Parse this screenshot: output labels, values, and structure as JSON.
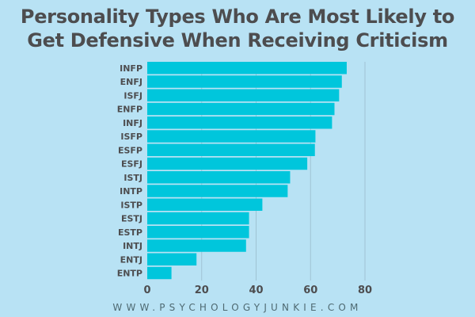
{
  "chart_data": {
    "type": "bar",
    "orientation": "horizontal",
    "title": "Personality Types Who Are Most Likely to Get Defensive When Receiving Criticism",
    "categories": [
      "INFP",
      "ENFJ",
      "ISFJ",
      "ENFP",
      "INFJ",
      "ISFP",
      "ESFP",
      "ESFJ",
      "ISTJ",
      "INTP",
      "ISTP",
      "ESTJ",
      "ESTP",
      "INTJ",
      "ENTJ",
      "ENTP"
    ],
    "values": [
      73.3,
      71.5,
      70.5,
      68.8,
      67.9,
      61.8,
      61.6,
      58.8,
      52.5,
      51.6,
      42.3,
      37.4,
      37.4,
      36.3,
      18.1,
      8.9
    ],
    "xlim": [
      0,
      80
    ],
    "xticks": [
      "0",
      "20",
      "40",
      "60",
      "80"
    ],
    "grid": true,
    "xlabel": "",
    "ylabel": "",
    "colors": {
      "bar": "#00c6dc",
      "background": "#b8e2f4",
      "text": "#4d4d4f",
      "grid": "#9fc3d3"
    }
  },
  "footer": "WWW.PSYCHOLOGYJUNKIE.COM"
}
